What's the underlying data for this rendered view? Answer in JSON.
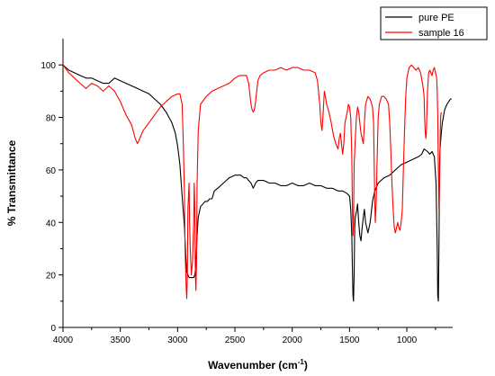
{
  "chart_data": {
    "type": "line",
    "title": "",
    "xlabel": "Wavenumber (cm",
    "xlabel_superscript": "-1",
    "xlabel_suffix": ")",
    "ylabel": "% Transmittance",
    "xlim": [
      4000,
      600
    ],
    "ylim": [
      0,
      110
    ],
    "x_ticks": [
      4000,
      3500,
      3000,
      2500,
      2000,
      1500,
      1000
    ],
    "y_ticks": [
      0,
      20,
      40,
      60,
      80,
      100
    ],
    "legend_position": "top-right",
    "grid": false,
    "series": [
      {
        "name": "pure PE",
        "color": "#000000",
        "points": [
          [
            4000,
            100
          ],
          [
            3950,
            98
          ],
          [
            3900,
            97
          ],
          [
            3850,
            96
          ],
          [
            3800,
            95
          ],
          [
            3750,
            95
          ],
          [
            3700,
            94
          ],
          [
            3650,
            93
          ],
          [
            3600,
            93
          ],
          [
            3550,
            95
          ],
          [
            3500,
            94
          ],
          [
            3450,
            93
          ],
          [
            3400,
            92
          ],
          [
            3350,
            91
          ],
          [
            3300,
            90
          ],
          [
            3250,
            89
          ],
          [
            3200,
            87
          ],
          [
            3150,
            85
          ],
          [
            3100,
            82
          ],
          [
            3050,
            78
          ],
          [
            3020,
            74
          ],
          [
            3000,
            69
          ],
          [
            2980,
            62
          ],
          [
            2960,
            50
          ],
          [
            2940,
            38
          ],
          [
            2930,
            28
          ],
          [
            2920,
            21
          ],
          [
            2910,
            20
          ],
          [
            2900,
            19
          ],
          [
            2880,
            19
          ],
          [
            2860,
            19
          ],
          [
            2850,
            20
          ],
          [
            2840,
            24
          ],
          [
            2830,
            35
          ],
          [
            2820,
            42
          ],
          [
            2800,
            46
          ],
          [
            2780,
            47
          ],
          [
            2760,
            48
          ],
          [
            2740,
            48
          ],
          [
            2720,
            49
          ],
          [
            2700,
            49
          ],
          [
            2680,
            52
          ],
          [
            2650,
            53
          ],
          [
            2600,
            55
          ],
          [
            2550,
            57
          ],
          [
            2500,
            58
          ],
          [
            2450,
            58
          ],
          [
            2420,
            57
          ],
          [
            2400,
            57
          ],
          [
            2380,
            56
          ],
          [
            2360,
            55
          ],
          [
            2340,
            53
          ],
          [
            2320,
            55
          ],
          [
            2300,
            56
          ],
          [
            2250,
            56
          ],
          [
            2200,
            55
          ],
          [
            2150,
            55
          ],
          [
            2100,
            54
          ],
          [
            2050,
            54
          ],
          [
            2000,
            55
          ],
          [
            1950,
            54
          ],
          [
            1900,
            54
          ],
          [
            1850,
            55
          ],
          [
            1800,
            54
          ],
          [
            1750,
            54
          ],
          [
            1700,
            53
          ],
          [
            1650,
            53
          ],
          [
            1600,
            52
          ],
          [
            1560,
            52
          ],
          [
            1520,
            51
          ],
          [
            1500,
            50
          ],
          [
            1490,
            45
          ],
          [
            1480,
            35
          ],
          [
            1475,
            22
          ],
          [
            1470,
            12
          ],
          [
            1465,
            10
          ],
          [
            1460,
            20
          ],
          [
            1455,
            38
          ],
          [
            1450,
            42
          ],
          [
            1440,
            44
          ],
          [
            1430,
            47
          ],
          [
            1420,
            40
          ],
          [
            1410,
            35
          ],
          [
            1400,
            33
          ],
          [
            1390,
            38
          ],
          [
            1380,
            42
          ],
          [
            1370,
            45
          ],
          [
            1360,
            40
          ],
          [
            1340,
            36
          ],
          [
            1320,
            40
          ],
          [
            1300,
            48
          ],
          [
            1280,
            52
          ],
          [
            1250,
            55
          ],
          [
            1200,
            57
          ],
          [
            1150,
            58
          ],
          [
            1100,
            60
          ],
          [
            1050,
            62
          ],
          [
            1000,
            63
          ],
          [
            950,
            64
          ],
          [
            900,
            65
          ],
          [
            870,
            66
          ],
          [
            850,
            68
          ],
          [
            820,
            67
          ],
          [
            800,
            66
          ],
          [
            780,
            67
          ],
          [
            760,
            65
          ],
          [
            745,
            55
          ],
          [
            735,
            30
          ],
          [
            730,
            12
          ],
          [
            725,
            10
          ],
          [
            720,
            30
          ],
          [
            715,
            62
          ],
          [
            710,
            68
          ],
          [
            700,
            74
          ],
          [
            690,
            78
          ],
          [
            670,
            83
          ],
          [
            650,
            85
          ],
          [
            620,
            87
          ],
          [
            610,
            87
          ]
        ]
      },
      {
        "name": "sample 16",
        "color": "#ff0000",
        "points": [
          [
            4000,
            100
          ],
          [
            3950,
            97
          ],
          [
            3900,
            95
          ],
          [
            3850,
            93
          ],
          [
            3800,
            91
          ],
          [
            3750,
            93
          ],
          [
            3700,
            92
          ],
          [
            3650,
            90
          ],
          [
            3600,
            92
          ],
          [
            3550,
            90
          ],
          [
            3500,
            86
          ],
          [
            3450,
            81
          ],
          [
            3400,
            77
          ],
          [
            3370,
            72
          ],
          [
            3350,
            70
          ],
          [
            3330,
            72
          ],
          [
            3300,
            75
          ],
          [
            3250,
            78
          ],
          [
            3200,
            81
          ],
          [
            3150,
            84
          ],
          [
            3100,
            86
          ],
          [
            3050,
            88
          ],
          [
            3000,
            89
          ],
          [
            2980,
            89
          ],
          [
            2960,
            85
          ],
          [
            2950,
            70
          ],
          [
            2940,
            50
          ],
          [
            2935,
            30
          ],
          [
            2925,
            15
          ],
          [
            2920,
            11
          ],
          [
            2915,
            20
          ],
          [
            2910,
            45
          ],
          [
            2900,
            55
          ],
          [
            2895,
            40
          ],
          [
            2890,
            30
          ],
          [
            2880,
            20
          ],
          [
            2870,
            25
          ],
          [
            2860,
            40
          ],
          [
            2855,
            55
          ],
          [
            2850,
            45
          ],
          [
            2845,
            20
          ],
          [
            2840,
            14
          ],
          [
            2835,
            25
          ],
          [
            2830,
            55
          ],
          [
            2820,
            75
          ],
          [
            2800,
            85
          ],
          [
            2750,
            88
          ],
          [
            2700,
            90
          ],
          [
            2650,
            91
          ],
          [
            2600,
            92
          ],
          [
            2550,
            93
          ],
          [
            2500,
            95
          ],
          [
            2460,
            96
          ],
          [
            2420,
            96
          ],
          [
            2400,
            96
          ],
          [
            2380,
            93
          ],
          [
            2370,
            89
          ],
          [
            2360,
            85
          ],
          [
            2350,
            83
          ],
          [
            2340,
            82
          ],
          [
            2330,
            83
          ],
          [
            2320,
            86
          ],
          [
            2310,
            90
          ],
          [
            2300,
            94
          ],
          [
            2280,
            96
          ],
          [
            2250,
            97
          ],
          [
            2200,
            98
          ],
          [
            2150,
            98
          ],
          [
            2100,
            99
          ],
          [
            2050,
            98
          ],
          [
            2000,
            99
          ],
          [
            1950,
            99
          ],
          [
            1900,
            98
          ],
          [
            1850,
            98
          ],
          [
            1800,
            97
          ],
          [
            1780,
            94
          ],
          [
            1760,
            85
          ],
          [
            1750,
            78
          ],
          [
            1740,
            75
          ],
          [
            1730,
            82
          ],
          [
            1720,
            90
          ],
          [
            1710,
            88
          ],
          [
            1700,
            85
          ],
          [
            1680,
            82
          ],
          [
            1660,
            78
          ],
          [
            1640,
            73
          ],
          [
            1620,
            70
          ],
          [
            1600,
            68
          ],
          [
            1590,
            72
          ],
          [
            1580,
            74
          ],
          [
            1560,
            66
          ],
          [
            1550,
            70
          ],
          [
            1540,
            78
          ],
          [
            1520,
            82
          ],
          [
            1510,
            85
          ],
          [
            1500,
            84
          ],
          [
            1490,
            80
          ],
          [
            1480,
            65
          ],
          [
            1475,
            45
          ],
          [
            1470,
            35
          ],
          [
            1465,
            40
          ],
          [
            1460,
            62
          ],
          [
            1450,
            72
          ],
          [
            1440,
            80
          ],
          [
            1430,
            84
          ],
          [
            1420,
            82
          ],
          [
            1410,
            78
          ],
          [
            1400,
            74
          ],
          [
            1390,
            72
          ],
          [
            1380,
            70
          ],
          [
            1370,
            78
          ],
          [
            1360,
            85
          ],
          [
            1340,
            88
          ],
          [
            1320,
            87
          ],
          [
            1300,
            84
          ],
          [
            1290,
            78
          ],
          [
            1285,
            62
          ],
          [
            1280,
            48
          ],
          [
            1275,
            40
          ],
          [
            1270,
            45
          ],
          [
            1265,
            52
          ],
          [
            1260,
            62
          ],
          [
            1250,
            80
          ],
          [
            1240,
            85
          ],
          [
            1220,
            88
          ],
          [
            1200,
            88
          ],
          [
            1180,
            87
          ],
          [
            1160,
            85
          ],
          [
            1150,
            78
          ],
          [
            1140,
            68
          ],
          [
            1130,
            55
          ],
          [
            1120,
            45
          ],
          [
            1110,
            38
          ],
          [
            1100,
            36
          ],
          [
            1090,
            38
          ],
          [
            1080,
            40
          ],
          [
            1070,
            38
          ],
          [
            1060,
            37
          ],
          [
            1050,
            40
          ],
          [
            1040,
            45
          ],
          [
            1030,
            60
          ],
          [
            1020,
            75
          ],
          [
            1010,
            88
          ],
          [
            1000,
            95
          ],
          [
            980,
            99
          ],
          [
            960,
            100
          ],
          [
            940,
            99
          ],
          [
            920,
            98
          ],
          [
            900,
            99
          ],
          [
            880,
            97
          ],
          [
            860,
            92
          ],
          [
            850,
            88
          ],
          [
            845,
            80
          ],
          [
            840,
            75
          ],
          [
            835,
            72
          ],
          [
            830,
            74
          ],
          [
            820,
            90
          ],
          [
            810,
            97
          ],
          [
            800,
            98
          ],
          [
            790,
            97
          ],
          [
            780,
            96
          ],
          [
            770,
            98
          ],
          [
            760,
            99
          ],
          [
            750,
            97
          ],
          [
            740,
            95
          ],
          [
            735,
            90
          ],
          [
            730,
            80
          ],
          [
            725,
            60
          ],
          [
            720,
            45
          ],
          [
            715,
            55
          ],
          [
            710,
            70
          ],
          [
            705,
            80
          ],
          [
            700,
            82
          ]
        ]
      }
    ]
  }
}
